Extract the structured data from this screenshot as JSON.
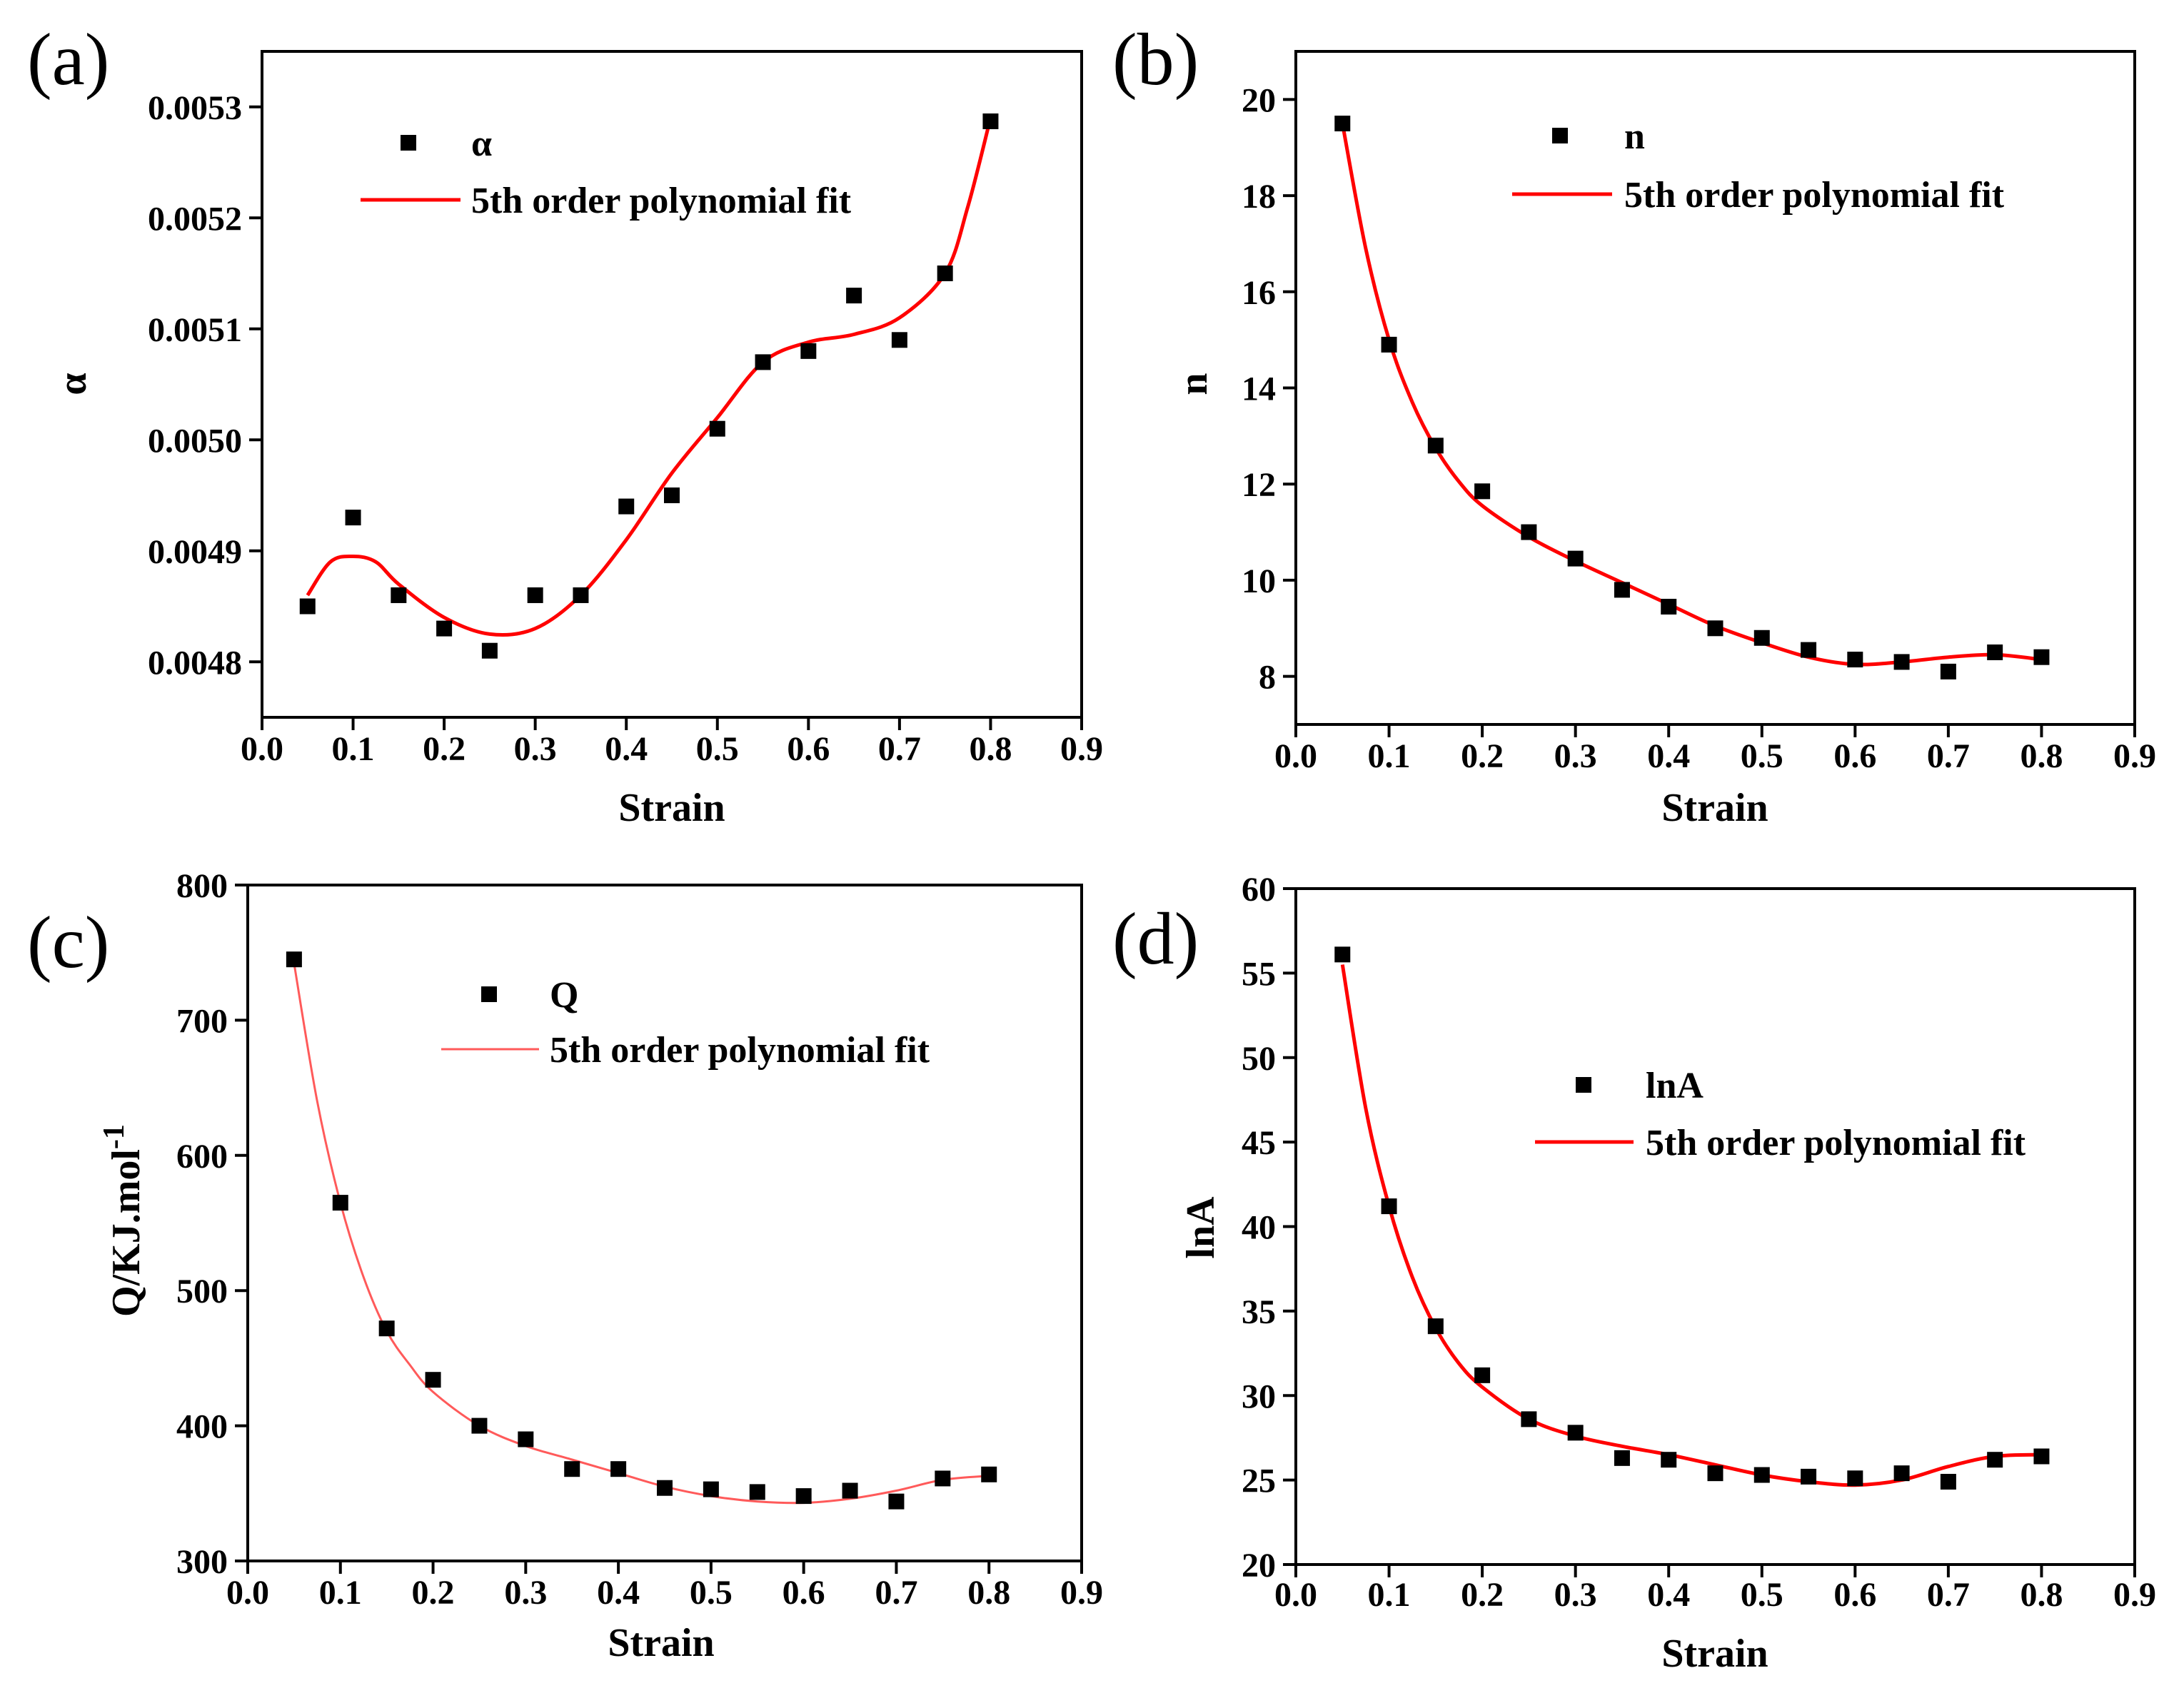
{
  "chart_data": [
    {
      "panel": "(a)",
      "type": "scatter",
      "xlabel": "Strain",
      "ylabel": "α",
      "xlim": [
        0.0,
        0.9
      ],
      "ylim": [
        0.00475,
        0.00535
      ],
      "xticks": [
        "0.0",
        "0.1",
        "0.2",
        "0.3",
        "0.4",
        "0.5",
        "0.6",
        "0.7",
        "0.8",
        "0.9"
      ],
      "yticks": [
        "0.0048",
        "0.0049",
        "0.0050",
        "0.0051",
        "0.0052",
        "0.0053"
      ],
      "legend": {
        "position": "top-left",
        "series_label": "α",
        "fit_label": "5th order polynomial fit"
      },
      "series": [
        {
          "name": "α",
          "x": [
            0.05,
            0.1,
            0.15,
            0.2,
            0.25,
            0.3,
            0.35,
            0.4,
            0.45,
            0.5,
            0.55,
            0.6,
            0.65,
            0.7,
            0.75,
            0.8
          ],
          "values": [
            0.00485,
            0.00493,
            0.00486,
            0.00483,
            0.00481,
            0.00486,
            0.00486,
            0.00494,
            0.00495,
            0.00501,
            0.00507,
            0.00508,
            0.00513,
            0.00509,
            0.00515,
            0.005287
          ]
        },
        {
          "name": "5th order polynomial fit",
          "x": [
            0.05,
            0.075,
            0.1,
            0.125,
            0.15,
            0.2,
            0.25,
            0.3,
            0.35,
            0.4,
            0.45,
            0.5,
            0.55,
            0.6,
            0.65,
            0.7,
            0.75,
            0.775,
            0.8
          ],
          "values": [
            0.00486,
            0.00489,
            0.004895,
            0.00489,
            0.00487,
            0.00484,
            0.004825,
            0.00483,
            0.00486,
            0.00491,
            0.00497,
            0.00502,
            0.00507,
            0.005088,
            0.005095,
            0.00511,
            0.00515,
            0.00521,
            0.00529
          ]
        }
      ]
    },
    {
      "panel": "(b)",
      "type": "scatter",
      "xlabel": "Strain",
      "ylabel": "n",
      "xlim": [
        0.0,
        0.9
      ],
      "ylim": [
        7.0,
        21.0
      ],
      "xticks": [
        "0.0",
        "0.1",
        "0.2",
        "0.3",
        "0.4",
        "0.5",
        "0.6",
        "0.7",
        "0.8",
        "0.9"
      ],
      "yticks": [
        "8",
        "10",
        "12",
        "14",
        "16",
        "18",
        "20"
      ],
      "legend": {
        "position": "top-right",
        "series_label": "n",
        "fit_label": "5th order polynomial fit"
      },
      "series": [
        {
          "name": "n",
          "x": [
            0.05,
            0.1,
            0.15,
            0.2,
            0.25,
            0.3,
            0.35,
            0.4,
            0.45,
            0.5,
            0.55,
            0.6,
            0.65,
            0.7,
            0.75,
            0.8
          ],
          "values": [
            19.5,
            14.9,
            12.8,
            11.85,
            11.0,
            10.45,
            9.8,
            9.45,
            9.0,
            8.8,
            8.55,
            8.35,
            8.3,
            8.1,
            8.5,
            8.4
          ]
        },
        {
          "name": "5th order polynomial fit",
          "x": [
            0.05,
            0.075,
            0.1,
            0.125,
            0.15,
            0.175,
            0.2,
            0.25,
            0.3,
            0.35,
            0.4,
            0.45,
            0.5,
            0.55,
            0.6,
            0.65,
            0.7,
            0.75,
            0.8
          ],
          "values": [
            19.5,
            16.9,
            15.0,
            13.7,
            12.75,
            12.05,
            11.55,
            10.9,
            10.4,
            9.95,
            9.5,
            9.05,
            8.7,
            8.4,
            8.25,
            8.3,
            8.4,
            8.45,
            8.35
          ]
        }
      ]
    },
    {
      "panel": "(c)",
      "type": "scatter",
      "xlabel": "Strain",
      "ylabel": "Q/KJ.mol",
      "ylabel_sup": "-1",
      "xlim": [
        0.0,
        0.9
      ],
      "ylim": [
        300,
        800
      ],
      "xticks": [
        "0.0",
        "0.1",
        "0.2",
        "0.3",
        "0.4",
        "0.5",
        "0.6",
        "0.7",
        "0.8",
        "0.9"
      ],
      "yticks": [
        "300",
        "400",
        "500",
        "600",
        "700",
        "800"
      ],
      "legend": {
        "position": "top-center",
        "series_label": "Q",
        "fit_label": "5th order polynomial fit"
      },
      "series": [
        {
          "name": "Q",
          "x": [
            0.05,
            0.1,
            0.15,
            0.2,
            0.25,
            0.3,
            0.35,
            0.4,
            0.45,
            0.5,
            0.55,
            0.6,
            0.65,
            0.7,
            0.75,
            0.8
          ],
          "values": [
            745,
            565,
            472,
            434,
            400,
            390,
            368,
            368,
            354,
            353,
            351,
            348,
            352,
            344,
            361,
            364
          ]
        },
        {
          "name": "5th order polynomial fit",
          "x": [
            0.05,
            0.075,
            0.1,
            0.125,
            0.15,
            0.175,
            0.2,
            0.25,
            0.3,
            0.35,
            0.4,
            0.45,
            0.5,
            0.55,
            0.6,
            0.65,
            0.7,
            0.75,
            0.8
          ],
          "values": [
            742,
            640,
            565,
            510,
            470,
            445,
            425,
            400,
            385,
            375,
            365,
            355,
            348,
            344,
            343,
            346,
            352,
            360,
            363
          ]
        }
      ]
    },
    {
      "panel": "(d)",
      "type": "scatter",
      "xlabel": "Strain",
      "ylabel": "lnA",
      "xlim": [
        0.0,
        0.9
      ],
      "ylim": [
        20,
        60
      ],
      "xticks": [
        "0.0",
        "0.1",
        "0.2",
        "0.3",
        "0.4",
        "0.5",
        "0.6",
        "0.7",
        "0.8",
        "0.9"
      ],
      "yticks": [
        "20",
        "25",
        "30",
        "35",
        "40",
        "45",
        "50",
        "55",
        "60"
      ],
      "legend": {
        "position": "center-right",
        "series_label": "lnA",
        "fit_label": "5th order polynomial fit"
      },
      "series": [
        {
          "name": "lnA",
          "x": [
            0.05,
            0.1,
            0.15,
            0.2,
            0.25,
            0.3,
            0.35,
            0.4,
            0.45,
            0.5,
            0.55,
            0.6,
            0.65,
            0.7,
            0.75,
            0.8
          ],
          "values": [
            56.1,
            41.2,
            34.1,
            31.2,
            28.6,
            27.8,
            26.3,
            26.2,
            25.4,
            25.3,
            25.2,
            25.1,
            25.4,
            24.9,
            26.2,
            26.4
          ]
        },
        {
          "name": "5th order polynomial fit",
          "x": [
            0.05,
            0.075,
            0.1,
            0.125,
            0.15,
            0.175,
            0.2,
            0.25,
            0.3,
            0.35,
            0.4,
            0.45,
            0.5,
            0.55,
            0.6,
            0.65,
            0.7,
            0.75,
            0.8
          ],
          "values": [
            55.5,
            47.0,
            41.2,
            37.0,
            34.0,
            31.9,
            30.5,
            28.6,
            27.6,
            27.0,
            26.5,
            25.9,
            25.3,
            24.9,
            24.7,
            25.0,
            25.8,
            26.4,
            26.5
          ]
        }
      ]
    }
  ]
}
